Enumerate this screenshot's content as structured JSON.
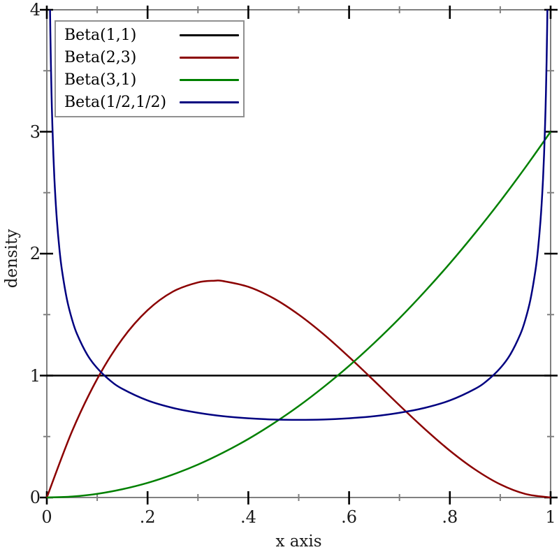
{
  "figure": {
    "background_color": "#ffffff",
    "frame_color": "#808080",
    "major_tick_color": "#000000",
    "minor_tick_color": "#808080"
  },
  "axes": {
    "x": {
      "major_ticks": [
        {
          "v": 0,
          "label": "0"
        },
        {
          "v": 0.2,
          "label": ".2"
        },
        {
          "v": 0.4,
          "label": ".4"
        },
        {
          "v": 0.6,
          "label": ".6"
        },
        {
          "v": 0.8,
          "label": ".8"
        },
        {
          "v": 1,
          "label": "1"
        }
      ],
      "minor_ticks": [
        0.1,
        0.3,
        0.5,
        0.7,
        0.9
      ]
    },
    "y": {
      "major_ticks": [
        {
          "v": 0,
          "label": "0"
        },
        {
          "v": 1,
          "label": "1"
        },
        {
          "v": 2,
          "label": "2"
        },
        {
          "v": 3,
          "label": "3"
        },
        {
          "v": 4,
          "label": "4"
        }
      ],
      "minor_ticks": [
        0.5,
        1.5,
        2.5,
        3.5
      ]
    }
  },
  "chart_data": {
    "type": "line",
    "title": "",
    "xlabel": "x axis",
    "ylabel": "density",
    "xlim": [
      0,
      1
    ],
    "ylim": [
      0,
      4
    ],
    "grid": false,
    "legend_position": "top-left",
    "x_tick_labels": [
      "0",
      ".2",
      ".4",
      ".6",
      ".8",
      "1"
    ],
    "y_tick_labels": [
      "0",
      "1",
      "2",
      "3",
      "4"
    ],
    "series": [
      {
        "name": "Beta(1,1)",
        "color": "#000000",
        "points": [
          [
            0,
            1
          ],
          [
            1,
            1
          ]
        ]
      },
      {
        "name": "Beta(2,3)",
        "color": "#8b0000",
        "points": [
          [
            0,
            0
          ],
          [
            0.05,
            0.542
          ],
          [
            0.1,
            0.972
          ],
          [
            0.15,
            1.301
          ],
          [
            0.2,
            1.536
          ],
          [
            0.25,
            1.688
          ],
          [
            0.3,
            1.764
          ],
          [
            0.333,
            1.778
          ],
          [
            0.35,
            1.775
          ],
          [
            0.4,
            1.728
          ],
          [
            0.45,
            1.634
          ],
          [
            0.5,
            1.5
          ],
          [
            0.55,
            1.337
          ],
          [
            0.6,
            1.152
          ],
          [
            0.65,
            0.956
          ],
          [
            0.7,
            0.756
          ],
          [
            0.75,
            0.563
          ],
          [
            0.8,
            0.384
          ],
          [
            0.85,
            0.23
          ],
          [
            0.9,
            0.108
          ],
          [
            0.95,
            0.029
          ],
          [
            1,
            0
          ]
        ]
      },
      {
        "name": "Beta(3,1)",
        "color": "#008000",
        "points": [
          [
            0,
            0
          ],
          [
            0.05,
            0.008
          ],
          [
            0.1,
            0.03
          ],
          [
            0.15,
            0.068
          ],
          [
            0.2,
            0.12
          ],
          [
            0.25,
            0.188
          ],
          [
            0.3,
            0.27
          ],
          [
            0.35,
            0.368
          ],
          [
            0.4,
            0.48
          ],
          [
            0.45,
            0.608
          ],
          [
            0.5,
            0.75
          ],
          [
            0.55,
            0.908
          ],
          [
            0.6,
            1.08
          ],
          [
            0.65,
            1.268
          ],
          [
            0.7,
            1.47
          ],
          [
            0.75,
            1.688
          ],
          [
            0.8,
            1.92
          ],
          [
            0.85,
            2.168
          ],
          [
            0.9,
            2.43
          ],
          [
            0.95,
            2.708
          ],
          [
            1,
            3
          ]
        ]
      },
      {
        "name": "Beta(1/2,1/2)",
        "color": "#000080",
        "points": [
          [
            0.0064,
            4.0
          ],
          [
            0.007,
            3.818
          ],
          [
            0.008,
            3.573
          ],
          [
            0.01,
            3.199
          ],
          [
            0.013,
            2.812
          ],
          [
            0.016,
            2.537
          ],
          [
            0.02,
            2.274
          ],
          [
            0.025,
            2.038
          ],
          [
            0.03,
            1.866
          ],
          [
            0.04,
            1.624
          ],
          [
            0.05,
            1.461
          ],
          [
            0.06,
            1.34
          ],
          [
            0.08,
            1.173
          ],
          [
            0.1,
            1.061
          ],
          [
            0.125,
            0.962
          ],
          [
            0.15,
            0.891
          ],
          [
            0.2,
            0.796
          ],
          [
            0.25,
            0.735
          ],
          [
            0.3,
            0.695
          ],
          [
            0.35,
            0.667
          ],
          [
            0.4,
            0.65
          ],
          [
            0.45,
            0.64
          ],
          [
            0.5,
            0.637
          ],
          [
            0.55,
            0.64
          ],
          [
            0.6,
            0.65
          ],
          [
            0.65,
            0.667
          ],
          [
            0.7,
            0.695
          ],
          [
            0.75,
            0.735
          ],
          [
            0.8,
            0.796
          ],
          [
            0.85,
            0.891
          ],
          [
            0.875,
            0.962
          ],
          [
            0.9,
            1.061
          ],
          [
            0.92,
            1.173
          ],
          [
            0.94,
            1.34
          ],
          [
            0.95,
            1.461
          ],
          [
            0.96,
            1.624
          ],
          [
            0.97,
            1.866
          ],
          [
            0.975,
            2.038
          ],
          [
            0.98,
            2.274
          ],
          [
            0.984,
            2.537
          ],
          [
            0.987,
            2.812
          ],
          [
            0.99,
            3.199
          ],
          [
            0.992,
            3.573
          ],
          [
            0.993,
            3.818
          ],
          [
            0.9936,
            4.0
          ]
        ]
      }
    ]
  }
}
